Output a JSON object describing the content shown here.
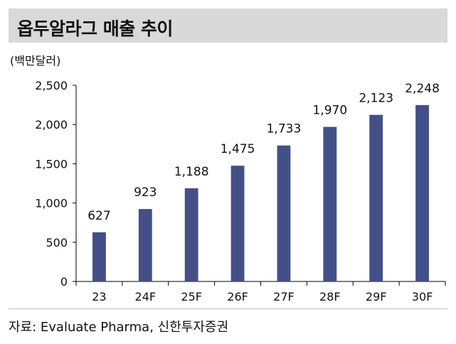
{
  "header": {
    "title": "옵두알라그 매출 추이",
    "unit": "(백만달러)"
  },
  "source": "자료: Evaluate Pharma, 신한투자증권",
  "colors": {
    "bar": "#435088",
    "title_band": "#d9d9d9",
    "axis": "#000000"
  },
  "chart_data": {
    "type": "bar",
    "title": "옵두알라그 매출 추이",
    "ylabel": "(백만달러)",
    "xlabel": "",
    "categories": [
      "23",
      "24F",
      "25F",
      "26F",
      "27F",
      "28F",
      "29F",
      "30F"
    ],
    "values": [
      627,
      923,
      1188,
      1475,
      1733,
      1970,
      2123,
      2248
    ],
    "value_labels": [
      "627",
      "923",
      "1,188",
      "1,475",
      "1,733",
      "1,970",
      "2,123",
      "2,248"
    ],
    "ylim": [
      0,
      2500
    ],
    "yticks": [
      0,
      500,
      1000,
      1500,
      2000,
      2500
    ],
    "ytick_labels": [
      "0",
      "500",
      "1,000",
      "1,500",
      "2,000",
      "2,500"
    ],
    "grid": false,
    "legend": "none"
  }
}
